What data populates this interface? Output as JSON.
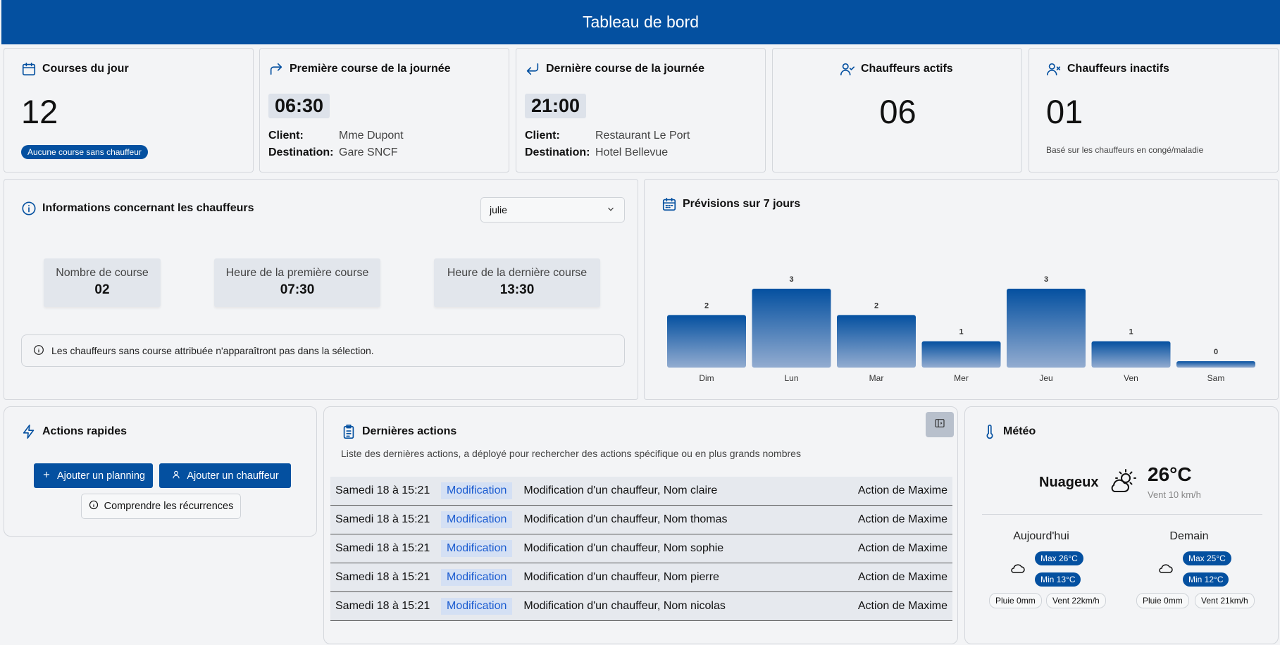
{
  "header": {
    "title": "Tableau de bord"
  },
  "courses_jour": {
    "title": "Courses du jour",
    "value": "12",
    "badge": "Aucune course sans chauffeur"
  },
  "premiere_course": {
    "title": "Première course de la journée",
    "time": "06:30",
    "client_label": "Client:",
    "client": "Mme Dupont",
    "destination_label": "Destination:",
    "destination": "Gare SNCF"
  },
  "derniere_course": {
    "title": "Dernière course de la journée",
    "time": "21:00",
    "client_label": "Client:",
    "client": "Restaurant Le Port",
    "destination_label": "Destination:",
    "destination": "Hotel Bellevue"
  },
  "chauffeurs_actifs": {
    "title": "Chauffeurs actifs",
    "value": "06"
  },
  "chauffeurs_inactifs": {
    "title": "Chauffeurs inactifs",
    "value": "01",
    "note": "Basé sur les chauffeurs en congé/maladie"
  },
  "infos_chauffeurs": {
    "title": "Informations concernant les chauffeurs",
    "select_value": "julie",
    "stats": [
      {
        "label": "Nombre de course",
        "value": "02"
      },
      {
        "label": "Heure de la première course",
        "value": "07:30"
      },
      {
        "label": "Heure de la dernière course",
        "value": "13:30"
      }
    ],
    "info": "Les chauffeurs sans course attribuée n'apparaîtront pas dans la sélection."
  },
  "previsions": {
    "title": "Prévisions sur 7 jours"
  },
  "chart_data": {
    "type": "bar",
    "categories": [
      "Dim",
      "Lun",
      "Mar",
      "Mer",
      "Jeu",
      "Ven",
      "Sam"
    ],
    "values": [
      2,
      3,
      2,
      1,
      3,
      1,
      0
    ],
    "data_labels": true,
    "bar_gradient": [
      "#0450a0",
      "#93acd0"
    ]
  },
  "actions_rapides": {
    "title": "Actions rapides",
    "add_planning": "Ajouter un planning",
    "add_driver": "Ajouter un chauffeur",
    "recurrences": "Comprendre les récurrences"
  },
  "dernieres_actions": {
    "title": "Dernières actions",
    "subtitle": "Liste des dernières actions, a déployé pour rechercher des actions spécifique ou en plus grands nombres",
    "rows": [
      {
        "date": "Samedi 18 à 15:21",
        "type": "Modification",
        "message": "Modification d'un chauffeur, Nom claire",
        "author": "Action de Maxime"
      },
      {
        "date": "Samedi 18 à 15:21",
        "type": "Modification",
        "message": "Modification d'un chauffeur, Nom thomas",
        "author": "Action de Maxime"
      },
      {
        "date": "Samedi 18 à 15:21",
        "type": "Modification",
        "message": "Modification d'un chauffeur, Nom sophie",
        "author": "Action de Maxime"
      },
      {
        "date": "Samedi 18 à 15:21",
        "type": "Modification",
        "message": "Modification d'un chauffeur, Nom pierre",
        "author": "Action de Maxime"
      },
      {
        "date": "Samedi 18 à 15:21",
        "type": "Modification",
        "message": "Modification d'un chauffeur, Nom nicolas",
        "author": "Action de Maxime"
      }
    ]
  },
  "meteo": {
    "title": "Météo",
    "condition": "Nuageux",
    "temperature": "26°C",
    "wind": "Vent 10 km/h",
    "today": {
      "label": "Aujourd'hui",
      "max": "Max 26°C",
      "min": "Min 13°C",
      "rain": "Pluie 0mm",
      "wind": "Vent 22km/h"
    },
    "tomorrow": {
      "label": "Demain",
      "max": "Max 25°C",
      "min": "Min 12°C",
      "rain": "Pluie 0mm",
      "wind": "Vent 21km/h"
    }
  },
  "colors": {
    "primary": "#0450a0",
    "tag_bg": "#d4e0f4",
    "tag_text": "#1a5bd0"
  }
}
